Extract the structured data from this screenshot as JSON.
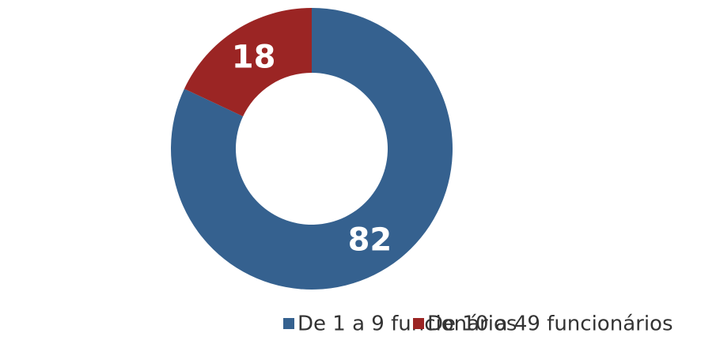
{
  "chart_data": {
    "type": "pie",
    "categories": [
      "De 1 a 9 funcionários",
      "De 10 a 49 funcionários"
    ],
    "values": [
      82,
      18
    ],
    "colors": [
      "#35618f",
      "#9b2524"
    ],
    "legend": "bottom"
  }
}
